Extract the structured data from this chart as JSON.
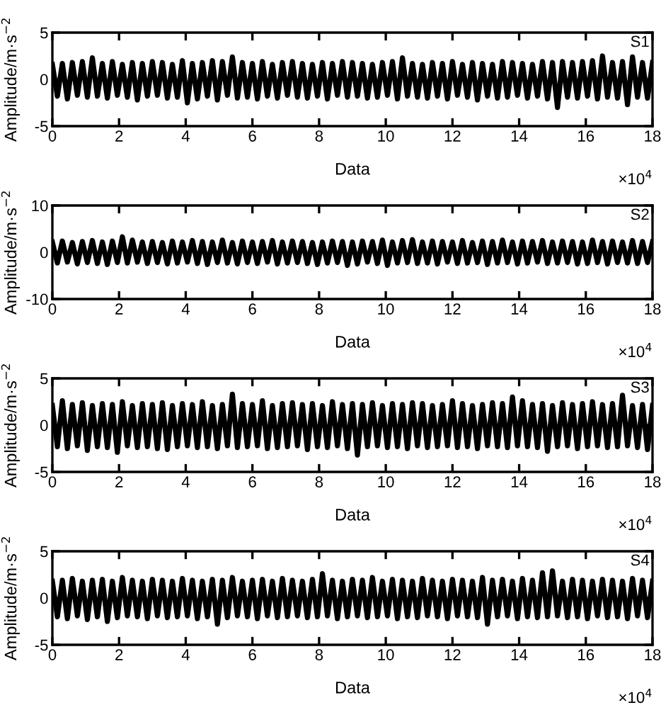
{
  "chart_data": [
    {
      "type": "line",
      "xlabel": "Data",
      "ylabel": "Amplitude/m·s$^{−2}$",
      "annotations": [
        "S1",
        "×10$^{4}$"
      ],
      "xlim": [
        0,
        18
      ],
      "ylim": [
        -5,
        5
      ],
      "xticks": [
        0,
        2,
        4,
        6,
        8,
        10,
        12,
        14,
        16,
        18
      ],
      "yticks": [
        -5,
        0,
        5
      ],
      "x": [
        0,
        0.15,
        0.3,
        0.45,
        0.6,
        0.75,
        0.9,
        1.05,
        1.2,
        1.35,
        1.5,
        1.65,
        1.8,
        1.95,
        2.1,
        2.25,
        2.4,
        2.55,
        2.7,
        2.85,
        3,
        3.15,
        3.3,
        3.45,
        3.6,
        3.75,
        3.9,
        4.05,
        4.2,
        4.35,
        4.5,
        4.65,
        4.8,
        4.95,
        5.1,
        5.25,
        5.4,
        5.55,
        5.7,
        5.85,
        6,
        6.15,
        6.3,
        6.45,
        6.6,
        6.75,
        6.9,
        7.05,
        7.2,
        7.35,
        7.5,
        7.65,
        7.8,
        7.95,
        8.1,
        8.25,
        8.4,
        8.55,
        8.7,
        8.85,
        9,
        9.15,
        9.3,
        9.45,
        9.6,
        9.75,
        9.9,
        10.05,
        10.2,
        10.35,
        10.5,
        10.65,
        10.8,
        10.95,
        11.1,
        11.25,
        11.4,
        11.55,
        11.7,
        11.85,
        12,
        12.15,
        12.3,
        12.45,
        12.6,
        12.75,
        12.9,
        13.05,
        13.2,
        13.35,
        13.5,
        13.65,
        13.8,
        13.95,
        14.1,
        14.25,
        14.4,
        14.55,
        14.7,
        14.85,
        15,
        15.15,
        15.3,
        15.45,
        15.6,
        15.75,
        15.9,
        16.05,
        16.2,
        16.35,
        16.5,
        16.65,
        16.8,
        16.95,
        17.1,
        17.25,
        17.4,
        17.55,
        17.7,
        17.85,
        18
      ],
      "series": [
        {
          "color": "#000000",
          "values": [
            1.6,
            -1.8,
            1.7,
            -2.1,
            1.8,
            -1.7,
            1.9,
            -1.9,
            2.3,
            -1.8,
            1.7,
            -2.0,
            1.9,
            -1.7,
            1.6,
            -1.9,
            1.8,
            -2.2,
            1.7,
            -1.8,
            1.9,
            -1.7,
            1.8,
            -2.0,
            1.6,
            -1.9,
            2.0,
            -2.5,
            1.7,
            -2.1,
            1.8,
            -1.8,
            2.0,
            -2.2,
            1.9,
            -1.7,
            2.4,
            -2.0,
            1.8,
            -1.9,
            1.7,
            -2.1,
            1.9,
            -1.8,
            1.6,
            -2.0,
            1.8,
            -1.7,
            1.9,
            -1.9,
            1.7,
            -2.0,
            1.6,
            -1.8,
            1.8,
            -2.1,
            1.7,
            -1.7,
            1.9,
            -1.9,
            1.8,
            -1.8,
            1.7,
            -2.0,
            1.6,
            -1.9,
            1.8,
            -1.7,
            1.9,
            -2.1,
            2.3,
            -1.8,
            1.7,
            -1.9,
            1.6,
            -2.0,
            1.8,
            -1.8,
            1.7,
            -2.1,
            1.9,
            -1.7,
            1.6,
            -1.9,
            1.8,
            -2.2,
            1.7,
            -1.8,
            1.6,
            -2.0,
            1.9,
            -1.9,
            1.8,
            -1.7,
            1.7,
            -2.0,
            1.6,
            -1.8,
            1.9,
            -2.1,
            1.8,
            -3.0,
            1.9,
            -1.9,
            1.8,
            -2.0,
            1.9,
            -1.8,
            2.0,
            -2.1,
            2.5,
            -1.9,
            1.8,
            -2.0,
            1.9,
            -2.7,
            2.4,
            -1.9,
            1.8,
            -2.0,
            1.8
          ]
        }
      ]
    },
    {
      "type": "line",
      "xlabel": "Data",
      "ylabel": "Amplitude/m·s$^{−2}$",
      "annotations": [
        "S2",
        "×10$^{4}$"
      ],
      "xlim": [
        0,
        18
      ],
      "ylim": [
        -10,
        10
      ],
      "xticks": [
        0,
        2,
        4,
        6,
        8,
        10,
        12,
        14,
        16,
        18
      ],
      "yticks": [
        -10,
        0,
        10
      ],
      "x": [
        0,
        0.15,
        0.3,
        0.45,
        0.6,
        0.75,
        0.9,
        1.05,
        1.2,
        1.35,
        1.5,
        1.65,
        1.8,
        1.95,
        2.1,
        2.25,
        2.4,
        2.55,
        2.7,
        2.85,
        3,
        3.15,
        3.3,
        3.45,
        3.6,
        3.75,
        3.9,
        4.05,
        4.2,
        4.35,
        4.5,
        4.65,
        4.8,
        4.95,
        5.1,
        5.25,
        5.4,
        5.55,
        5.7,
        5.85,
        6,
        6.15,
        6.3,
        6.45,
        6.6,
        6.75,
        6.9,
        7.05,
        7.2,
        7.35,
        7.5,
        7.65,
        7.8,
        7.95,
        8.1,
        8.25,
        8.4,
        8.55,
        8.7,
        8.85,
        9,
        9.15,
        9.3,
        9.45,
        9.6,
        9.75,
        9.9,
        10.05,
        10.2,
        10.35,
        10.5,
        10.65,
        10.8,
        10.95,
        11.1,
        11.25,
        11.4,
        11.55,
        11.7,
        11.85,
        12,
        12.15,
        12.3,
        12.45,
        12.6,
        12.75,
        12.9,
        13.05,
        13.2,
        13.35,
        13.5,
        13.65,
        13.8,
        13.95,
        14.1,
        14.25,
        14.4,
        14.55,
        14.7,
        14.85,
        15,
        15.15,
        15.3,
        15.45,
        15.6,
        15.75,
        15.9,
        16.05,
        16.2,
        16.35,
        16.5,
        16.65,
        16.8,
        16.95,
        17.1,
        17.25,
        17.4,
        17.55,
        17.7,
        17.85,
        18
      ],
      "series": [
        {
          "color": "#000000",
          "values": [
            2.2,
            -2.3,
            2.4,
            -2.1,
            2.1,
            -2.5,
            2.3,
            -2.2,
            2.5,
            -2.4,
            2.2,
            -2.6,
            2.4,
            -2.2,
            3.3,
            -2.3,
            2.6,
            -2.1,
            2.2,
            -2.4,
            2.3,
            -2.2,
            2.1,
            -2.5,
            2.4,
            -2.3,
            2.2,
            -2.1,
            2.5,
            -2.4,
            2.3,
            -2.6,
            2.2,
            -2.2,
            2.6,
            -2.3,
            2.1,
            -2.5,
            2.4,
            -2.2,
            2.2,
            -2.4,
            2.3,
            -2.1,
            2.5,
            -2.5,
            2.2,
            -2.3,
            2.4,
            -2.2,
            2.3,
            -2.4,
            2.1,
            -2.6,
            2.2,
            -2.3,
            2.4,
            -2.2,
            2.3,
            -2.8,
            2.2,
            -2.5,
            2.4,
            -2.1,
            2.3,
            -2.4,
            2.6,
            -2.8,
            2.2,
            -2.3,
            2.5,
            -2.2,
            2.7,
            -2.4,
            2.2,
            -2.3,
            2.4,
            -2.5,
            2.3,
            -2.1,
            2.2,
            -2.4,
            2.5,
            -2.3,
            2.1,
            -2.2,
            2.4,
            -2.6,
            2.3,
            -2.3,
            2.6,
            -2.2,
            2.2,
            -2.5,
            2.4,
            -2.3,
            2.3,
            -2.1,
            2.5,
            -2.4,
            2.2,
            -2.3,
            2.4,
            -2.2,
            2.3,
            -2.5,
            2.2,
            -2.4,
            2.6,
            -2.2,
            2.3,
            -2.5,
            2.4,
            -2.2,
            2.2,
            -2.3,
            2.5,
            -2.4,
            2.3,
            -2.2,
            2.2
          ]
        }
      ]
    },
    {
      "type": "line",
      "xlabel": "Data",
      "ylabel": "Amplitude/m·s$^{−2}$",
      "annotations": [
        "S3",
        "×10$^{4}$"
      ],
      "xlim": [
        0,
        18
      ],
      "ylim": [
        -5,
        5
      ],
      "xticks": [
        0,
        2,
        4,
        6,
        8,
        10,
        12,
        14,
        16,
        18
      ],
      "yticks": [
        -5,
        0,
        5
      ],
      "x": [
        0,
        0.15,
        0.3,
        0.45,
        0.6,
        0.75,
        0.9,
        1.05,
        1.2,
        1.35,
        1.5,
        1.65,
        1.8,
        1.95,
        2.1,
        2.25,
        2.4,
        2.55,
        2.7,
        2.85,
        3,
        3.15,
        3.3,
        3.45,
        3.6,
        3.75,
        3.9,
        4.05,
        4.2,
        4.35,
        4.5,
        4.65,
        4.8,
        4.95,
        5.1,
        5.25,
        5.4,
        5.55,
        5.7,
        5.85,
        6,
        6.15,
        6.3,
        6.45,
        6.6,
        6.75,
        6.9,
        7.05,
        7.2,
        7.35,
        7.5,
        7.65,
        7.8,
        7.95,
        8.1,
        8.25,
        8.4,
        8.55,
        8.7,
        8.85,
        9,
        9.15,
        9.3,
        9.45,
        9.6,
        9.75,
        9.9,
        10.05,
        10.2,
        10.35,
        10.5,
        10.65,
        10.8,
        10.95,
        11.1,
        11.25,
        11.4,
        11.55,
        11.7,
        11.85,
        12,
        12.15,
        12.3,
        12.45,
        12.6,
        12.75,
        12.9,
        13.05,
        13.2,
        13.35,
        13.5,
        13.65,
        13.8,
        13.95,
        14.1,
        14.25,
        14.4,
        14.55,
        14.7,
        14.85,
        15,
        15.15,
        15.3,
        15.45,
        15.6,
        15.75,
        15.9,
        16.05,
        16.2,
        16.35,
        16.5,
        16.65,
        16.8,
        16.95,
        17.1,
        17.25,
        17.4,
        17.55,
        17.7,
        17.85,
        18
      ],
      "series": [
        {
          "color": "#000000",
          "values": [
            2.1,
            -2.3,
            2.6,
            -2.5,
            2.2,
            -2.2,
            2.4,
            -2.7,
            2.1,
            -2.3,
            2.3,
            -2.4,
            2.2,
            -2.9,
            2.5,
            -2.2,
            2.1,
            -2.4,
            2.3,
            -2.3,
            2.2,
            -2.5,
            2.4,
            -2.6,
            2.1,
            -2.3,
            2.3,
            -2.2,
            2.2,
            -2.4,
            2.5,
            -2.3,
            2.1,
            -2.5,
            2.2,
            -2.2,
            3.3,
            -2.4,
            2.3,
            -2.3,
            2.2,
            -2.2,
            2.6,
            -2.5,
            2.1,
            -2.4,
            2.3,
            -2.3,
            2.4,
            -2.2,
            2.2,
            -2.6,
            2.3,
            -2.3,
            2.1,
            -2.4,
            2.5,
            -2.2,
            2.2,
            -2.5,
            2.3,
            -3.2,
            2.2,
            -2.3,
            2.4,
            -2.2,
            2.1,
            -2.4,
            2.3,
            -2.3,
            2.2,
            -2.5,
            2.4,
            -2.2,
            2.3,
            -2.4,
            2.1,
            -2.3,
            2.2,
            -2.2,
            2.6,
            -2.4,
            2.3,
            -2.3,
            2.1,
            -2.5,
            2.2,
            -2.2,
            2.4,
            -2.3,
            2.3,
            -2.4,
            3.0,
            -2.2,
            2.6,
            -2.3,
            2.2,
            -2.4,
            2.3,
            -2.8,
            2.1,
            -2.3,
            2.4,
            -2.2,
            2.2,
            -2.5,
            2.3,
            -2.3,
            2.5,
            -2.2,
            2.2,
            -2.4,
            2.3,
            -2.3,
            3.2,
            -2.2,
            2.1,
            -2.4,
            2.2,
            -2.6,
            2.1
          ]
        }
      ]
    },
    {
      "type": "line",
      "xlabel": "Data",
      "ylabel": "Amplitude/m·s$^{−2}$",
      "annotations": [
        "S4",
        "×10$^{4}$"
      ],
      "xlim": [
        0,
        18
      ],
      "ylim": [
        -5,
        5
      ],
      "xticks": [
        0,
        2,
        4,
        6,
        8,
        10,
        12,
        14,
        16,
        18
      ],
      "yticks": [
        -5,
        0,
        5
      ],
      "x": [
        0,
        0.15,
        0.3,
        0.45,
        0.6,
        0.75,
        0.9,
        1.05,
        1.2,
        1.35,
        1.5,
        1.65,
        1.8,
        1.95,
        2.1,
        2.25,
        2.4,
        2.55,
        2.7,
        2.85,
        3,
        3.15,
        3.3,
        3.45,
        3.6,
        3.75,
        3.9,
        4.05,
        4.2,
        4.35,
        4.5,
        4.65,
        4.8,
        4.95,
        5.1,
        5.25,
        5.4,
        5.55,
        5.7,
        5.85,
        6,
        6.15,
        6.3,
        6.45,
        6.6,
        6.75,
        6.9,
        7.05,
        7.2,
        7.35,
        7.5,
        7.65,
        7.8,
        7.95,
        8.1,
        8.25,
        8.4,
        8.55,
        8.7,
        8.85,
        9,
        9.15,
        9.3,
        9.45,
        9.6,
        9.75,
        9.9,
        10.05,
        10.2,
        10.35,
        10.5,
        10.65,
        10.8,
        10.95,
        11.1,
        11.25,
        11.4,
        11.55,
        11.7,
        11.85,
        12,
        12.15,
        12.3,
        12.45,
        12.6,
        12.75,
        12.9,
        13.05,
        13.2,
        13.35,
        13.5,
        13.65,
        13.8,
        13.95,
        14.1,
        14.25,
        14.4,
        14.55,
        14.7,
        14.85,
        15,
        15.15,
        15.3,
        15.45,
        15.6,
        15.75,
        15.9,
        16.05,
        16.2,
        16.35,
        16.5,
        16.65,
        16.8,
        16.95,
        17.1,
        17.25,
        17.4,
        17.55,
        17.7,
        17.85,
        18
      ],
      "series": [
        {
          "color": "#000000",
          "values": [
            1.8,
            -2.0,
            1.9,
            -2.2,
            2.1,
            -1.9,
            1.8,
            -2.3,
            1.9,
            -2.0,
            2.0,
            -2.5,
            1.8,
            -2.1,
            2.2,
            -1.9,
            1.9,
            -2.0,
            1.8,
            -2.2,
            2.0,
            -1.9,
            1.9,
            -2.1,
            1.8,
            -2.0,
            2.1,
            -1.9,
            1.9,
            -2.2,
            1.8,
            -2.0,
            2.0,
            -2.8,
            1.9,
            -2.1,
            2.2,
            -1.9,
            1.8,
            -2.0,
            1.9,
            -2.2,
            2.0,
            -1.9,
            1.8,
            -2.1,
            2.1,
            -2.0,
            1.9,
            -1.9,
            1.8,
            -2.1,
            2.0,
            -2.0,
            2.6,
            -1.9,
            1.9,
            -2.2,
            1.8,
            -2.0,
            2.0,
            -1.9,
            1.9,
            -2.1,
            2.2,
            -2.0,
            1.8,
            -1.9,
            2.0,
            -2.2,
            1.9,
            -2.0,
            1.8,
            -2.1,
            2.1,
            -1.9,
            1.9,
            -2.0,
            1.8,
            -2.2,
            2.0,
            -1.9,
            1.9,
            -2.0,
            1.8,
            -2.1,
            2.2,
            -2.8,
            1.9,
            -2.0,
            2.0,
            -1.9,
            1.8,
            -2.2,
            2.1,
            -2.0,
            1.9,
            -2.1,
            2.7,
            -2.0,
            2.9,
            -1.9,
            1.8,
            -2.1,
            2.0,
            -2.0,
            1.9,
            -2.2,
            1.8,
            -1.9,
            2.0,
            -2.1,
            1.9,
            -2.0,
            1.8,
            -2.2,
            2.1,
            -1.9,
            1.9,
            -2.1,
            1.8
          ]
        }
      ]
    }
  ]
}
